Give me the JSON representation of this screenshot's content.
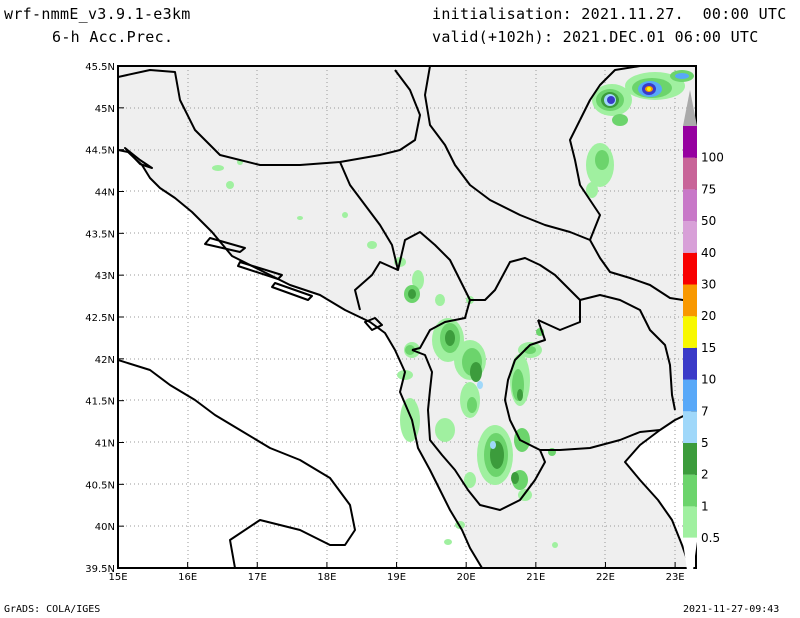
{
  "header": {
    "model": "wrf-nmmE_v3.9.1-e3km",
    "field": "6-h Acc.Prec.",
    "init": "initialisation: 2021.11.27.  00:00 UTC",
    "valid": "valid(+102h): 2021.DEC.01 06:00 UTC"
  },
  "footer": {
    "left": "GrADS: COLA/IGES",
    "right": "2021-11-27-09:43"
  },
  "axes": {
    "lat_labels": [
      "45.5N",
      "45N",
      "44.5N",
      "44N",
      "43.5N",
      "43N",
      "42.5N",
      "42N",
      "41.5N",
      "41N",
      "40.5N",
      "40N",
      "39.5N"
    ],
    "lon_labels": [
      "15E",
      "16E",
      "17E",
      "18E",
      "19E",
      "20E",
      "21E",
      "22E",
      "23E"
    ],
    "lat_values": [
      45.5,
      45,
      44.5,
      44,
      43.5,
      43,
      42.5,
      42,
      41.5,
      41,
      40.5,
      40,
      39.5
    ],
    "lon_values": [
      15,
      16,
      17,
      18,
      19,
      20,
      21,
      22,
      23
    ],
    "lat_range": [
      39.5,
      45.5
    ],
    "lon_range": [
      15,
      23.3
    ]
  },
  "colorbar": {
    "levels": [
      "0.5",
      "1",
      "2",
      "5",
      "7",
      "10",
      "15",
      "20",
      "30",
      "40",
      "50",
      "75",
      "100"
    ],
    "colors": [
      "#a0f0a0",
      "#6cd46c",
      "#3c9c3c",
      "#a0d8fa",
      "#58a8f8",
      "#3a3ac8",
      "#f8f800",
      "#f89800",
      "#f80000",
      "#d8a0d8",
      "#c878c8",
      "#c86498",
      "#9600a0"
    ]
  },
  "map": {
    "land_color": "#efefef",
    "sea_color": "#ffffff",
    "grid": "dotted"
  }
}
